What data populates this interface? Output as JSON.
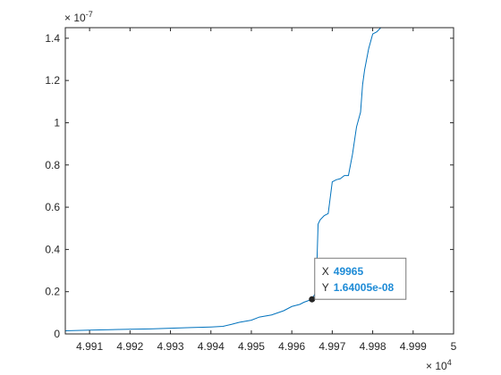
{
  "chart_data": {
    "type": "line",
    "title": "",
    "xlabel": "",
    "ylabel": "",
    "xlim": [
      49904,
      50000
    ],
    "ylim": [
      0,
      1.45e-07
    ],
    "x_exponent_label": {
      "base": "× 10",
      "power": "4"
    },
    "y_exponent_label": {
      "base": "× 10",
      "power": "-7"
    },
    "x_ticks": [
      49910,
      49920,
      49930,
      49940,
      49950,
      49960,
      49970,
      49980,
      49990,
      50000
    ],
    "x_tick_labels": [
      "4.991",
      "4.992",
      "4.993",
      "4.994",
      "4.995",
      "4.996",
      "4.997",
      "4.998",
      "4.999",
      "5"
    ],
    "y_ticks": [
      0,
      2e-08,
      4e-08,
      6e-08,
      8e-08,
      1e-07,
      1.2e-07,
      1.4e-07
    ],
    "y_tick_labels": [
      "0",
      "0.2",
      "0.4",
      "0.6",
      "0.8",
      "1",
      "1.2",
      "1.4"
    ],
    "grid": false,
    "series_color": "#0072bd",
    "series": [
      {
        "name": "",
        "points": [
          [
            49904,
            1.5e-09
          ],
          [
            49910,
            1.8e-09
          ],
          [
            49915,
            2e-09
          ],
          [
            49920,
            2.2e-09
          ],
          [
            49925,
            2.4e-09
          ],
          [
            49930,
            2.7e-09
          ],
          [
            49935,
            3e-09
          ],
          [
            49940,
            3.3e-09
          ],
          [
            49943,
            3.6e-09
          ],
          [
            49945,
            4.5e-09
          ],
          [
            49947,
            5.5e-09
          ],
          [
            49950,
            6.5e-09
          ],
          [
            49952,
            8e-09
          ],
          [
            49955,
            9e-09
          ],
          [
            49958,
            1.1e-08
          ],
          [
            49960,
            1.3e-08
          ],
          [
            49962,
            1.4e-08
          ],
          [
            49963,
            1.5e-08
          ],
          [
            49965,
            1.64005e-08
          ],
          [
            49966,
            2e-08
          ],
          [
            49966.5,
            5.2e-08
          ],
          [
            49967,
            5.4e-08
          ],
          [
            49968,
            5.6e-08
          ],
          [
            49969,
            5.7e-08
          ],
          [
            49970,
            7.2e-08
          ],
          [
            49971,
            7.3e-08
          ],
          [
            49972,
            7.35e-08
          ],
          [
            49973,
            7.5e-08
          ],
          [
            49974,
            7.5e-08
          ],
          [
            49975,
            8.5e-08
          ],
          [
            49976,
            9.8e-08
          ],
          [
            49977,
            1.05e-07
          ],
          [
            49977.5,
            1.18e-07
          ],
          [
            49978,
            1.25e-07
          ],
          [
            49979,
            1.35e-07
          ],
          [
            49980,
            1.42e-07
          ],
          [
            49981,
            1.43e-07
          ],
          [
            49982,
            1.45e-07
          ]
        ]
      }
    ],
    "datatip": {
      "x_label": "X",
      "x_value": "49965",
      "y_label": "Y",
      "y_value": "1.64005e-08",
      "x": 49965,
      "y": 1.64005e-08
    },
    "colors": {
      "axis": "#262626",
      "tooltip_border": "#767676",
      "tooltip_value": "#1e8bd6"
    }
  }
}
